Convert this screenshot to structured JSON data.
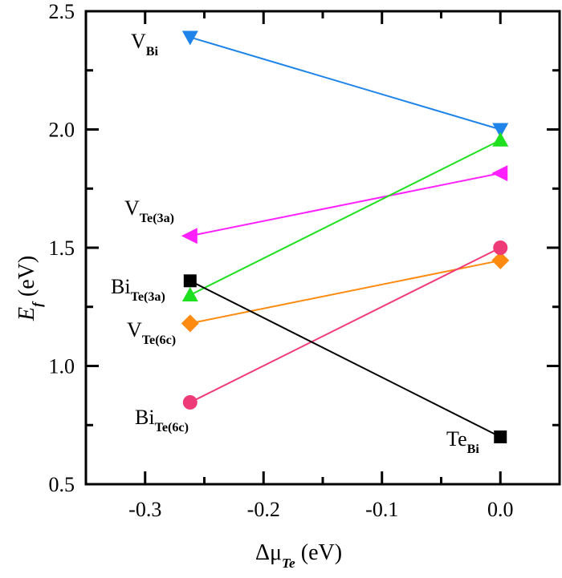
{
  "chart_data": {
    "type": "line",
    "xlabel": {
      "main": "Δμ",
      "sub": "Te",
      "unit": " (eV)"
    },
    "ylabel": {
      "main": "E",
      "sub": "f",
      "unit": " (eV)"
    },
    "xlim": [
      -0.35,
      0.05
    ],
    "ylim": [
      0.5,
      2.5
    ],
    "xticks": [
      "-0.3",
      "-0.2",
      "-0.1",
      "0.0"
    ],
    "xtick_values": [
      -0.3,
      -0.2,
      -0.1,
      0.0
    ],
    "yticks": [
      "0.5",
      "1.0",
      "1.5",
      "2.0",
      "2.5"
    ],
    "ytick_values": [
      0.5,
      1.0,
      1.5,
      2.0,
      2.5
    ],
    "grid": false,
    "x": [
      -0.262,
      0.0
    ],
    "series": [
      {
        "name": "V_Bi",
        "label_main": "V",
        "label_sub": "Bi",
        "color": "#1e84ea",
        "marker": "triangle-down",
        "values": [
          2.39,
          2.0
        ]
      },
      {
        "name": "V_Te(3a)",
        "label_main": "V",
        "label_sub": "Te(3a)",
        "color": "#ff1fff",
        "marker": "triangle-left",
        "values": [
          1.55,
          1.815
        ]
      },
      {
        "name": "Bi_Te(3a)",
        "label_main": "Bi",
        "label_sub": "Te(3a)",
        "color": "#1fe01f",
        "marker": "triangle-up",
        "values": [
          1.3,
          1.955
        ]
      },
      {
        "name": "V_Te(6c)",
        "label_main": "V",
        "label_sub": "Te(6c)",
        "color": "#ff8a10",
        "marker": "diamond",
        "values": [
          1.18,
          1.446
        ]
      },
      {
        "name": "Bi_Te(6c)",
        "label_main": "Bi",
        "label_sub": "Te(6c)",
        "color": "#ef3a78",
        "marker": "circle",
        "values": [
          0.846,
          1.5
        ]
      },
      {
        "name": "Te_Bi",
        "label_main": "Te",
        "label_sub": "Bi",
        "color": "#000000",
        "marker": "square",
        "values": [
          1.36,
          0.7
        ]
      }
    ]
  }
}
